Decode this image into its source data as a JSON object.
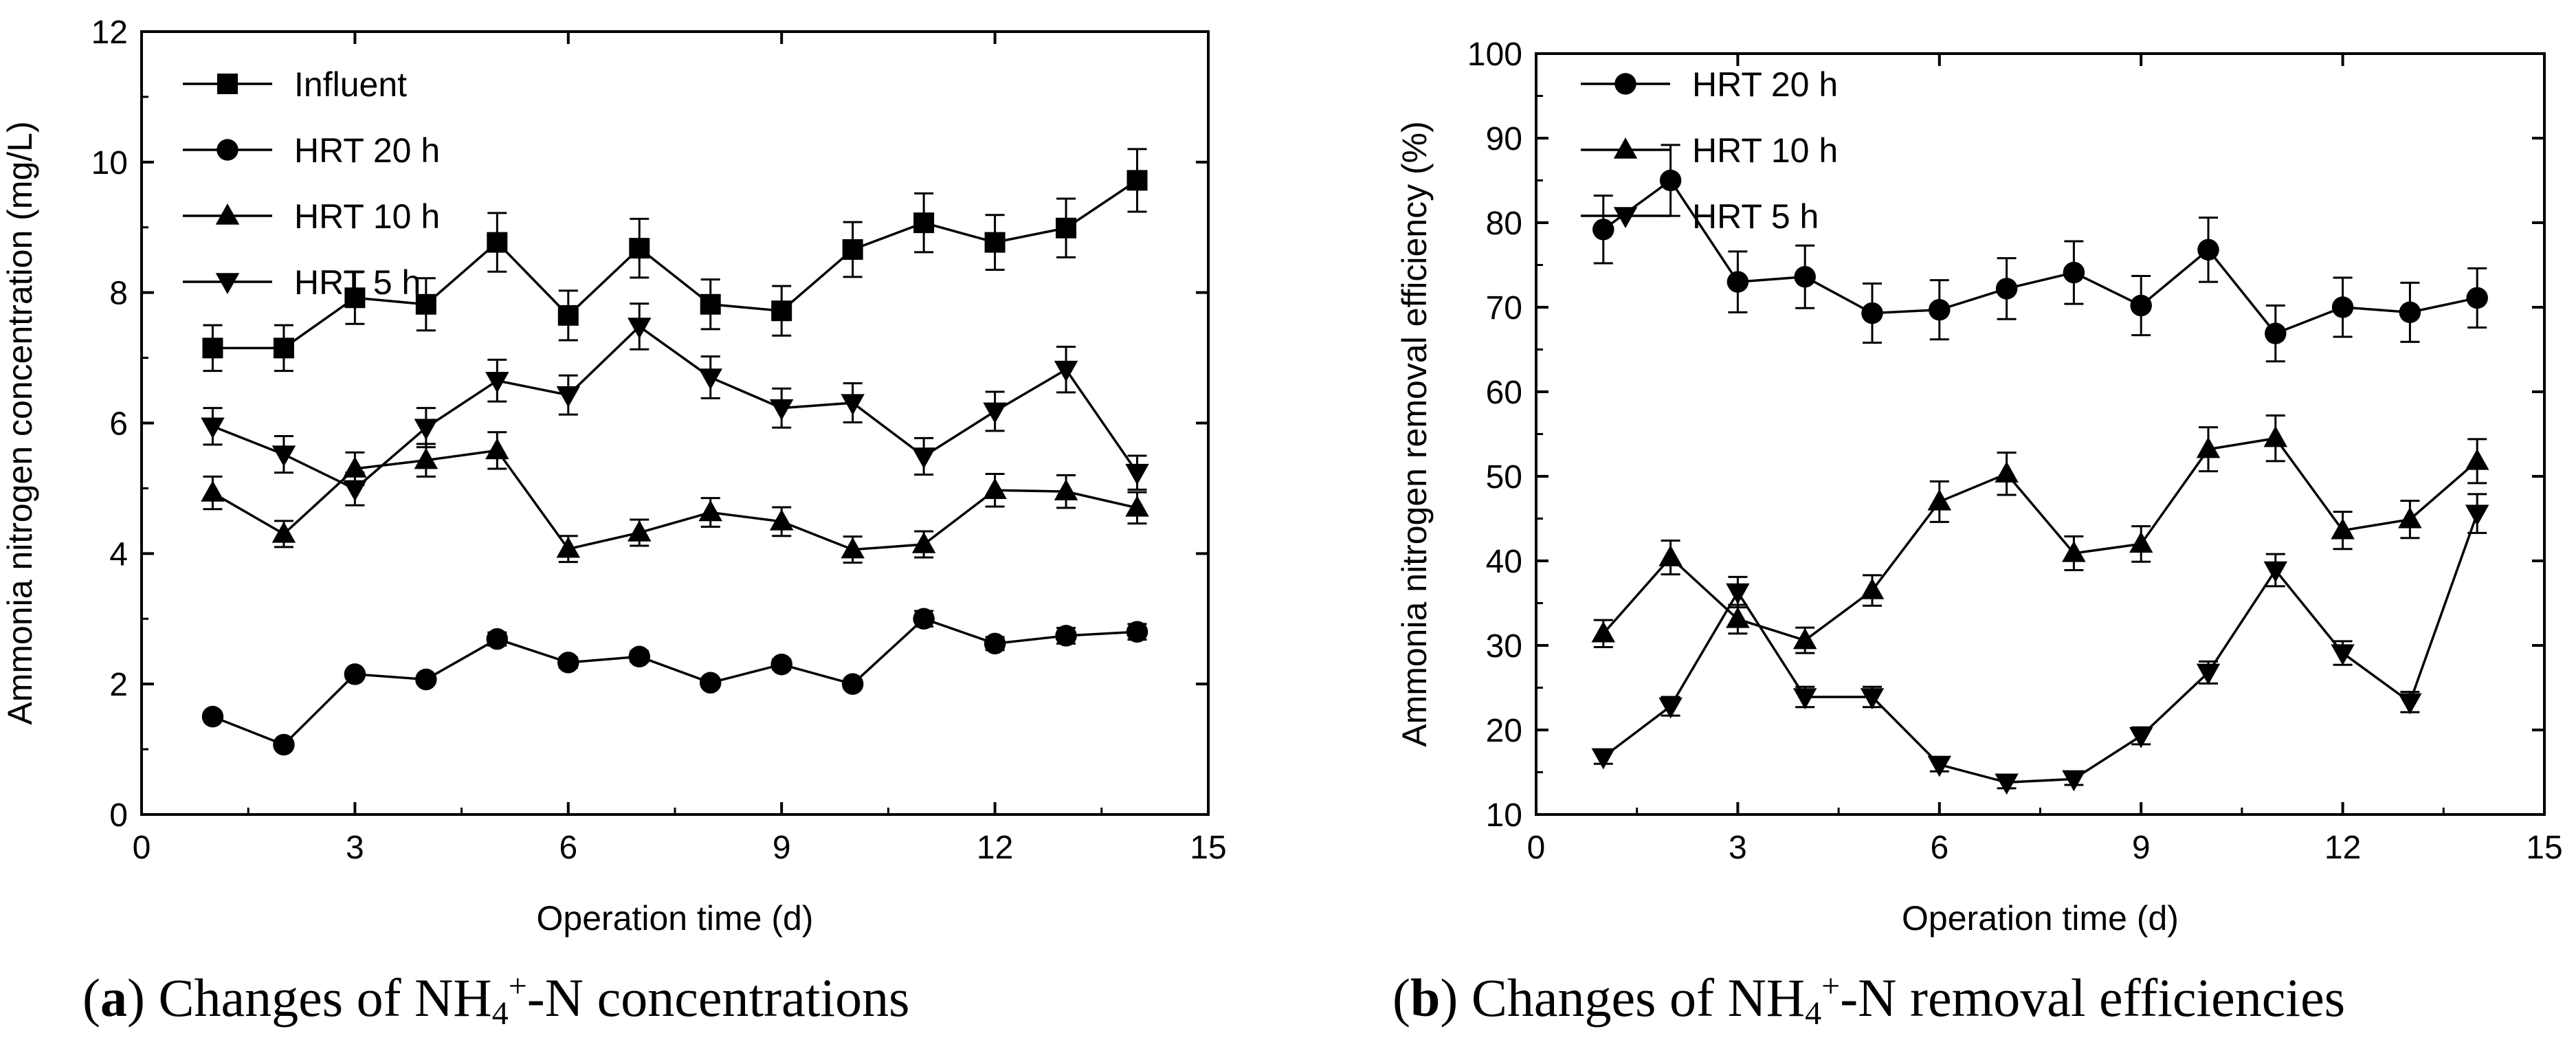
{
  "chart_data": [
    {
      "type": "line",
      "panel": "a",
      "caption": {
        "letter": "a",
        "text_before_sub": ") Changes of NH",
        "subscript": "4",
        "superscript": "+",
        "text_after_sub": "-N concentrations"
      },
      "xlabel": "Operation time (d)",
      "ylabel": "Ammonia nitrogen concentration (mg/L)",
      "xlim": [
        0,
        15
      ],
      "ylim": [
        0,
        12
      ],
      "xticks": [
        0,
        3,
        6,
        9,
        12,
        15
      ],
      "yticks": [
        0,
        2,
        4,
        6,
        8,
        10,
        12
      ],
      "legend_position": "top-left",
      "grid": false,
      "x": [
        1,
        2,
        3,
        4,
        5,
        6,
        7,
        8,
        9,
        10,
        11,
        12,
        13,
        14
      ],
      "series": [
        {
          "name": "Influent",
          "marker": "square",
          "values": [
            7.15,
            7.15,
            7.92,
            7.82,
            8.77,
            7.65,
            8.68,
            7.82,
            7.72,
            8.66,
            9.07,
            8.77,
            8.99,
            9.72
          ],
          "errors": [
            0.35,
            0.35,
            0.4,
            0.4,
            0.45,
            0.38,
            0.45,
            0.38,
            0.38,
            0.42,
            0.45,
            0.42,
            0.45,
            0.48
          ]
        },
        {
          "name": "HRT 20 h",
          "marker": "circle",
          "values": [
            1.5,
            1.07,
            2.15,
            2.07,
            2.69,
            2.33,
            2.42,
            2.02,
            2.3,
            2.0,
            3.0,
            2.62,
            2.74,
            2.8
          ],
          "errors": [
            0.04,
            0.04,
            0.06,
            0.06,
            0.1,
            0.08,
            0.08,
            0.06,
            0.08,
            0.06,
            0.12,
            0.1,
            0.12,
            0.12
          ]
        },
        {
          "name": "HRT 10 h",
          "marker": "triangle-up",
          "values": [
            4.93,
            4.3,
            5.3,
            5.43,
            5.58,
            4.07,
            4.32,
            4.63,
            4.49,
            4.06,
            4.14,
            4.97,
            4.95,
            4.7
          ],
          "errors": [
            0.25,
            0.2,
            0.25,
            0.25,
            0.28,
            0.2,
            0.2,
            0.22,
            0.22,
            0.2,
            0.2,
            0.25,
            0.25,
            0.24
          ]
        },
        {
          "name": "HRT 5 h",
          "marker": "triangle-down",
          "values": [
            5.95,
            5.52,
            4.99,
            5.93,
            6.65,
            6.43,
            7.48,
            6.7,
            6.23,
            6.31,
            5.49,
            6.18,
            6.82,
            5.24
          ],
          "errors": [
            0.28,
            0.28,
            0.25,
            0.3,
            0.32,
            0.3,
            0.35,
            0.32,
            0.3,
            0.3,
            0.28,
            0.3,
            0.35,
            0.26
          ]
        }
      ]
    },
    {
      "type": "line",
      "panel": "b",
      "caption": {
        "letter": "b",
        "text_before_sub": ") Changes of NH",
        "subscript": "4",
        "superscript": "+",
        "text_after_sub": "-N removal efficiencies"
      },
      "xlabel": "Operation time (d)",
      "ylabel": "Ammonia nitrogen removal efficiency (%)",
      "xlim": [
        0,
        15
      ],
      "ylim": [
        10,
        100
      ],
      "xticks": [
        0,
        3,
        6,
        9,
        12,
        15
      ],
      "yticks": [
        10,
        20,
        30,
        40,
        50,
        60,
        70,
        80,
        90,
        100
      ],
      "legend_position": "top-left",
      "grid": false,
      "x": [
        1,
        2,
        3,
        4,
        5,
        6,
        7,
        8,
        9,
        10,
        11,
        12,
        13,
        14
      ],
      "series": [
        {
          "name": "HRT 20 h",
          "marker": "circle",
          "values": [
            79.2,
            85.0,
            73.0,
            73.6,
            69.3,
            69.7,
            72.2,
            74.1,
            70.2,
            76.8,
            66.9,
            70.0,
            69.4,
            71.1
          ],
          "errors": [
            4.0,
            4.2,
            3.6,
            3.7,
            3.5,
            3.5,
            3.6,
            3.7,
            3.5,
            3.8,
            3.3,
            3.5,
            3.5,
            3.5
          ]
        },
        {
          "name": "HRT 10 h",
          "marker": "triangle-up",
          "values": [
            31.4,
            40.4,
            33.1,
            30.6,
            36.5,
            47.0,
            50.3,
            40.9,
            42.0,
            53.2,
            54.5,
            43.6,
            44.9,
            51.8
          ],
          "errors": [
            1.6,
            2.0,
            1.7,
            1.5,
            1.8,
            2.4,
            2.5,
            2.0,
            2.1,
            2.6,
            2.7,
            2.2,
            2.2,
            2.6
          ]
        },
        {
          "name": "HRT 5 h",
          "marker": "triangle-down",
          "values": [
            16.8,
            22.8,
            36.3,
            23.9,
            23.9,
            15.9,
            13.8,
            14.2,
            19.3,
            26.8,
            38.9,
            29.1,
            23.3,
            45.6
          ],
          "errors": [
            0.8,
            1.1,
            1.8,
            1.2,
            1.2,
            0.8,
            0.7,
            0.7,
            1.0,
            1.3,
            1.9,
            1.4,
            1.2,
            2.3
          ]
        }
      ]
    }
  ]
}
